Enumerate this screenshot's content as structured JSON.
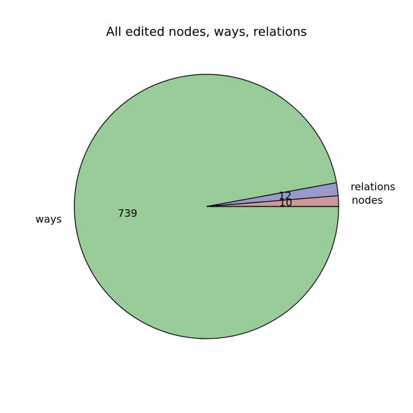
{
  "chart_data": {
    "type": "pie",
    "title": "All edited nodes, ways, relations",
    "slices": [
      {
        "label": "nodes",
        "value": 10,
        "color": "#cc9999"
      },
      {
        "label": "relations",
        "value": 12,
        "color": "#9999cc"
      },
      {
        "label": "ways",
        "value": 739,
        "color": "#99cc99"
      }
    ],
    "edge_color": "#000000",
    "legend": "none"
  }
}
